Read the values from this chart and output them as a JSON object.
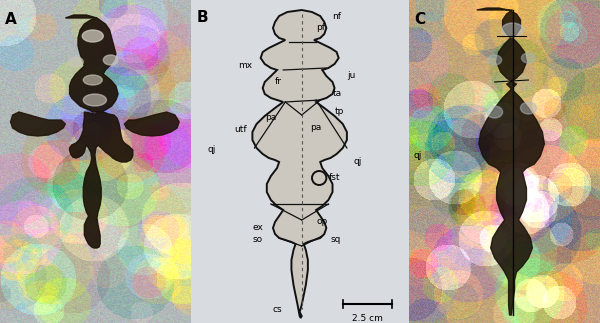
{
  "fig_width": 6.0,
  "fig_height": 3.23,
  "dpi": 100,
  "panel_A_label": "A",
  "panel_B_label": "B",
  "panel_C_label": "C",
  "label_fontsize": 11,
  "anno_fontsize": 6.5,
  "scale_text": "2.5 cm",
  "skull_fill": "#ccc8c0",
  "skull_edge": "#111111",
  "skull_lw": 1.4,
  "dash_color": "#555555"
}
